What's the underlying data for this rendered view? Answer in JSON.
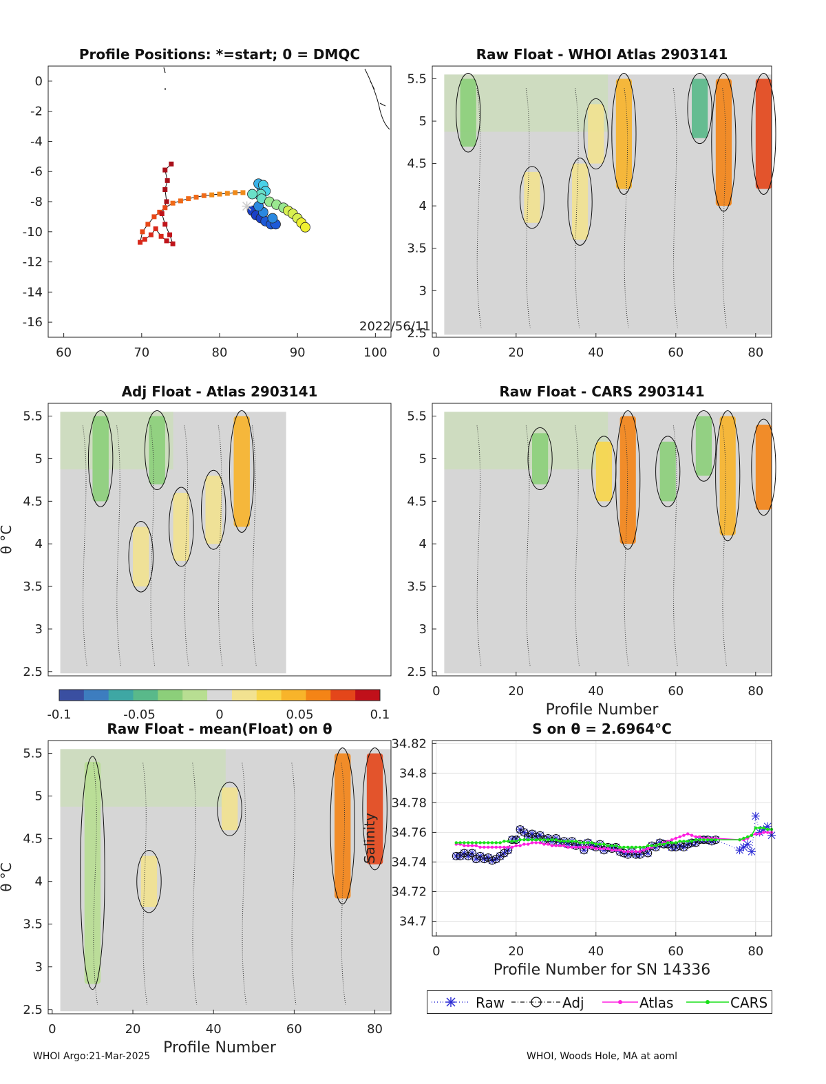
{
  "colors": {
    "raw": "#2a2ad4",
    "adj": "#111111",
    "atlas": "#ff1fe0",
    "cars": "#18e018",
    "colormap": [
      "#3a4fa1",
      "#3d7dbf",
      "#3ea7a4",
      "#59b98a",
      "#8ccf7a",
      "#b8de92",
      "#d8d8d8",
      "#f2e290",
      "#f8d64a",
      "#f8b42a",
      "#f48416",
      "#e4461a",
      "#c0101a"
    ]
  },
  "footer": {
    "left": "WHOI Argo:21-Mar-2025",
    "right": "WHOI, Woods Hole, MA at aoml"
  },
  "chart_data": [
    {
      "type": "scatter",
      "title": "Profile Positions: *=start; 0 = DMQC",
      "annotation": "2022/56/11",
      "xlim": [
        58,
        102
      ],
      "ylim": [
        -17,
        1
      ],
      "x_ticks": [
        60,
        70,
        80,
        90,
        100
      ],
      "y_ticks": [
        0,
        -2,
        -4,
        -6,
        -8,
        -10,
        -12,
        -14,
        -16
      ],
      "track_start": {
        "x": 83.5,
        "y": -8.3
      },
      "dmqc_profiles": [
        {
          "x": 84.2,
          "y": -8.6
        },
        {
          "x": 84.7,
          "y": -8.9
        },
        {
          "x": 85.3,
          "y": -9.1
        },
        {
          "x": 85.9,
          "y": -9.3
        },
        {
          "x": 86.6,
          "y": -9.5
        },
        {
          "x": 87.2,
          "y": -9.5
        },
        {
          "x": 86.8,
          "y": -9.1
        },
        {
          "x": 85.6,
          "y": -8.7
        },
        {
          "x": 85.0,
          "y": -8.3
        },
        {
          "x": 85.2,
          "y": -7.6
        },
        {
          "x": 85.4,
          "y": -7.1
        },
        {
          "x": 85.0,
          "y": -6.8
        },
        {
          "x": 85.6,
          "y": -6.9
        },
        {
          "x": 85.9,
          "y": -7.3
        },
        {
          "x": 85.3,
          "y": -7.5
        },
        {
          "x": 84.2,
          "y": -7.5
        },
        {
          "x": 85.4,
          "y": -7.8
        },
        {
          "x": 86.4,
          "y": -8.0
        },
        {
          "x": 87.3,
          "y": -8.2
        },
        {
          "x": 88.2,
          "y": -8.4
        },
        {
          "x": 88.8,
          "y": -8.6
        },
        {
          "x": 89.4,
          "y": -8.8
        },
        {
          "x": 90.0,
          "y": -9.1
        },
        {
          "x": 90.5,
          "y": -9.4
        },
        {
          "x": 91.0,
          "y": -9.7
        }
      ],
      "non_dmqc_profiles": [
        {
          "x": 83.0,
          "y": -7.4
        },
        {
          "x": 82.0,
          "y": -7.4
        },
        {
          "x": 81.0,
          "y": -7.45
        },
        {
          "x": 80.0,
          "y": -7.5
        },
        {
          "x": 79.0,
          "y": -7.55
        },
        {
          "x": 78.0,
          "y": -7.6
        },
        {
          "x": 77.0,
          "y": -7.7
        },
        {
          "x": 76.0,
          "y": -7.8
        },
        {
          "x": 75.0,
          "y": -7.95
        },
        {
          "x": 74.0,
          "y": -8.1
        },
        {
          "x": 73.0,
          "y": -8.4
        },
        {
          "x": 72.3,
          "y": -8.7
        },
        {
          "x": 71.6,
          "y": -9.0
        },
        {
          "x": 70.8,
          "y": -9.5
        },
        {
          "x": 70.1,
          "y": -10.0
        },
        {
          "x": 69.8,
          "y": -10.7
        },
        {
          "x": 70.4,
          "y": -10.5
        },
        {
          "x": 71.2,
          "y": -10.2
        },
        {
          "x": 71.8,
          "y": -9.8
        },
        {
          "x": 72.5,
          "y": -10.3
        },
        {
          "x": 73.2,
          "y": -10.6
        },
        {
          "x": 74.0,
          "y": -10.8
        },
        {
          "x": 73.6,
          "y": -10.2
        },
        {
          "x": 73.0,
          "y": -9.5
        },
        {
          "x": 72.6,
          "y": -8.8
        },
        {
          "x": 73.2,
          "y": -8.0
        },
        {
          "x": 73.0,
          "y": -7.2
        },
        {
          "x": 73.3,
          "y": -6.6
        },
        {
          "x": 73.0,
          "y": -5.9
        },
        {
          "x": 73.8,
          "y": -5.5
        }
      ]
    },
    {
      "type": "heatmap",
      "title": "Raw Float - WHOI Atlas  2903141",
      "xlim": [
        -1,
        84
      ],
      "ylim": [
        2.45,
        5.65
      ],
      "x_ticks": [
        0,
        20,
        40,
        60,
        80
      ],
      "y_ticks": [
        2.5,
        3,
        3.5,
        4,
        4.5,
        5,
        5.5
      ],
      "x_coverage": [
        2,
        84
      ],
      "anomaly_bands": [
        {
          "x": 8,
          "theta": [
            4.7,
            5.5
          ],
          "value": -0.03
        },
        {
          "x": 24,
          "theta": [
            3.8,
            4.4
          ],
          "value": 0.02
        },
        {
          "x": 36,
          "theta": [
            3.6,
            4.5
          ],
          "value": 0.02
        },
        {
          "x": 40,
          "theta": [
            4.5,
            5.2
          ],
          "value": 0.02
        },
        {
          "x": 47,
          "theta": [
            4.2,
            5.5
          ],
          "value": 0.05
        },
        {
          "x": 66,
          "theta": [
            4.8,
            5.5
          ],
          "value": -0.05
        },
        {
          "x": 72,
          "theta": [
            4.0,
            5.5
          ],
          "value": 0.07
        },
        {
          "x": 82,
          "theta": [
            4.2,
            5.5
          ],
          "value": 0.09
        }
      ]
    },
    {
      "type": "heatmap",
      "title": "Adj Float - Atlas  2903141",
      "ylabel": "θ °C",
      "xlim": [
        -1,
        84
      ],
      "ylim": [
        2.45,
        5.65
      ],
      "y_ticks": [
        2.5,
        3,
        3.5,
        4,
        4.5,
        5,
        5.5
      ],
      "x_coverage": [
        2,
        58
      ],
      "anomaly_bands": [
        {
          "x": 12,
          "theta": [
            4.5,
            5.5
          ],
          "value": -0.03
        },
        {
          "x": 26,
          "theta": [
            4.7,
            5.5
          ],
          "value": -0.04
        },
        {
          "x": 22,
          "theta": [
            3.5,
            4.2
          ],
          "value": 0.02
        },
        {
          "x": 32,
          "theta": [
            3.8,
            4.6
          ],
          "value": 0.02
        },
        {
          "x": 40,
          "theta": [
            4.0,
            4.8
          ],
          "value": 0.02
        },
        {
          "x": 47,
          "theta": [
            4.2,
            5.5
          ],
          "value": 0.05
        }
      ]
    },
    {
      "type": "heatmap",
      "title": "Raw Float - CARS  2903141",
      "xlabel": "Profile Number",
      "xlim": [
        -1,
        84
      ],
      "ylim": [
        2.45,
        5.65
      ],
      "x_ticks": [
        0,
        20,
        40,
        60,
        80
      ],
      "y_ticks": [
        2.5,
        3,
        3.5,
        4,
        4.5,
        5,
        5.5
      ],
      "x_coverage": [
        2,
        84
      ],
      "anomaly_bands": [
        {
          "x": 26,
          "theta": [
            4.7,
            5.3
          ],
          "value": -0.04
        },
        {
          "x": 42,
          "theta": [
            4.5,
            5.2
          ],
          "value": 0.03
        },
        {
          "x": 48,
          "theta": [
            4.0,
            5.5
          ],
          "value": 0.06
        },
        {
          "x": 58,
          "theta": [
            4.5,
            5.2
          ],
          "value": -0.04
        },
        {
          "x": 67,
          "theta": [
            4.8,
            5.5
          ],
          "value": -0.04
        },
        {
          "x": 73,
          "theta": [
            4.1,
            5.5
          ],
          "value": 0.05
        },
        {
          "x": 82,
          "theta": [
            4.4,
            5.4
          ],
          "value": 0.06
        }
      ]
    },
    {
      "type": "heatmap",
      "title": "Raw Float - mean(Float) on θ",
      "ylabel": "θ °C",
      "xlabel": "Profile Number",
      "xlim": [
        -1,
        84
      ],
      "ylim": [
        2.45,
        5.65
      ],
      "x_ticks": [
        0,
        20,
        40,
        60,
        80
      ],
      "y_ticks": [
        2.5,
        3,
        3.5,
        4,
        4.5,
        5,
        5.5
      ],
      "x_coverage": [
        2,
        84
      ],
      "anomaly_bands": [
        {
          "x": 10,
          "theta": [
            2.8,
            5.4
          ],
          "value": -0.02
        },
        {
          "x": 24,
          "theta": [
            3.7,
            4.3
          ],
          "value": 0.02
        },
        {
          "x": 44,
          "theta": [
            4.6,
            5.1
          ],
          "value": 0.02
        },
        {
          "x": 72,
          "theta": [
            3.8,
            5.5
          ],
          "value": 0.06
        },
        {
          "x": 80,
          "theta": [
            4.2,
            5.5
          ],
          "value": 0.08
        }
      ]
    },
    {
      "type": "line",
      "title": "S on θ = 2.6964°C",
      "xlabel": "Profile Number for SN 14336",
      "ylabel": "Salinity",
      "xlim": [
        -1,
        84
      ],
      "ylim": [
        34.69,
        34.822
      ],
      "x_ticks": [
        0,
        20,
        40,
        60,
        80
      ],
      "y_ticks": [
        34.7,
        34.72,
        34.74,
        34.76,
        34.78,
        34.8,
        34.82
      ],
      "grid": true,
      "legend_position": "bottom",
      "x": [
        5,
        6,
        7,
        8,
        9,
        10,
        11,
        12,
        13,
        14,
        15,
        16,
        17,
        18,
        19,
        20,
        21,
        22,
        23,
        24,
        25,
        26,
        27,
        28,
        29,
        30,
        31,
        32,
        33,
        34,
        35,
        36,
        37,
        38,
        39,
        40,
        41,
        42,
        43,
        44,
        45,
        46,
        47,
        48,
        49,
        50,
        51,
        52,
        53,
        54,
        55,
        56,
        57,
        58,
        59,
        60,
        61,
        62,
        63,
        64,
        65,
        66,
        67,
        68,
        69,
        70,
        76,
        77,
        78,
        79,
        80,
        81,
        82,
        83,
        84
      ],
      "series": [
        {
          "name": "Raw",
          "values": [
            34.744,
            34.744,
            34.746,
            34.744,
            34.746,
            34.742,
            34.744,
            34.742,
            34.743,
            34.741,
            34.742,
            34.744,
            34.746,
            34.748,
            34.755,
            34.755,
            34.762,
            34.76,
            34.757,
            34.759,
            34.757,
            34.758,
            34.755,
            34.756,
            34.754,
            34.756,
            34.753,
            34.754,
            34.752,
            34.754,
            34.751,
            34.752,
            34.748,
            34.753,
            34.751,
            34.75,
            34.752,
            34.748,
            34.75,
            34.749,
            34.75,
            34.747,
            34.746,
            34.745,
            34.747,
            34.745,
            34.745,
            34.748,
            34.746,
            34.751,
            34.75,
            34.753,
            34.752,
            34.752,
            34.75,
            34.75,
            34.751,
            34.75,
            34.752,
            34.753,
            34.753,
            34.755,
            34.755,
            34.755,
            34.754,
            34.755,
            34.748,
            34.75,
            34.752,
            34.747,
            34.771,
            34.76,
            34.762,
            34.764,
            34.758
          ]
        },
        {
          "name": "Adj",
          "values": [
            34.744,
            34.744,
            34.746,
            34.744,
            34.746,
            34.742,
            34.744,
            34.742,
            34.743,
            34.741,
            34.742,
            34.744,
            34.746,
            34.748,
            34.755,
            34.755,
            34.762,
            34.76,
            34.757,
            34.759,
            34.757,
            34.758,
            34.755,
            34.756,
            34.754,
            34.756,
            34.753,
            34.754,
            34.752,
            34.754,
            34.751,
            34.752,
            34.748,
            34.753,
            34.751,
            34.75,
            34.752,
            34.748,
            34.75,
            34.749,
            34.75,
            34.747,
            34.746,
            34.745,
            34.747,
            34.745,
            34.745,
            34.748,
            34.746,
            34.751,
            34.75,
            34.753,
            34.752,
            34.752,
            34.75,
            34.75,
            34.751,
            34.75,
            34.752,
            34.753,
            34.753,
            34.755,
            34.755,
            34.755,
            34.754,
            34.755,
            null,
            null,
            null,
            null,
            null,
            null,
            null,
            null,
            null
          ]
        },
        {
          "name": "Atlas",
          "values": [
            34.752,
            34.752,
            34.751,
            34.751,
            34.751,
            34.751,
            34.75,
            34.75,
            34.75,
            34.75,
            34.75,
            34.75,
            34.75,
            34.75,
            34.75,
            34.751,
            34.751,
            34.752,
            34.752,
            34.753,
            34.753,
            34.753,
            34.752,
            34.752,
            34.751,
            34.751,
            34.751,
            34.751,
            34.75,
            34.75,
            34.75,
            34.75,
            34.75,
            34.75,
            34.75,
            34.749,
            34.749,
            34.749,
            34.749,
            34.748,
            34.748,
            34.748,
            34.747,
            34.747,
            34.747,
            34.747,
            34.747,
            34.748,
            34.749,
            34.75,
            34.751,
            34.752,
            34.753,
            34.754,
            34.755,
            34.756,
            34.757,
            34.758,
            34.759,
            34.758,
            34.757,
            34.757,
            34.756,
            34.756,
            34.756,
            34.756,
            34.755,
            34.755,
            34.756,
            34.758,
            34.759,
            34.759,
            34.76,
            34.76,
            34.76
          ]
        },
        {
          "name": "CARS",
          "values": [
            34.753,
            34.753,
            34.753,
            34.753,
            34.753,
            34.753,
            34.753,
            34.753,
            34.753,
            34.753,
            34.753,
            34.753,
            34.754,
            34.754,
            34.754,
            34.754,
            34.755,
            34.755,
            34.755,
            34.755,
            34.755,
            34.755,
            34.755,
            34.755,
            34.755,
            34.755,
            34.754,
            34.754,
            34.754,
            34.754,
            34.754,
            34.753,
            34.753,
            34.753,
            34.753,
            34.752,
            34.752,
            34.752,
            34.751,
            34.751,
            34.751,
            34.75,
            34.75,
            34.75,
            34.75,
            34.75,
            34.75,
            34.75,
            34.751,
            34.751,
            34.751,
            34.752,
            34.752,
            34.753,
            34.753,
            34.753,
            34.754,
            34.754,
            34.754,
            34.754,
            34.755,
            34.755,
            34.755,
            34.755,
            34.755,
            34.755,
            34.755,
            34.756,
            34.757,
            34.758,
            34.763,
            34.763,
            34.763,
            34.762,
            34.762
          ]
        }
      ]
    }
  ],
  "colorbar": {
    "ticks": [
      "-0.1",
      "-0.05",
      "0",
      "0.05",
      "0.1"
    ],
    "range": [
      -0.1,
      0.1
    ]
  }
}
